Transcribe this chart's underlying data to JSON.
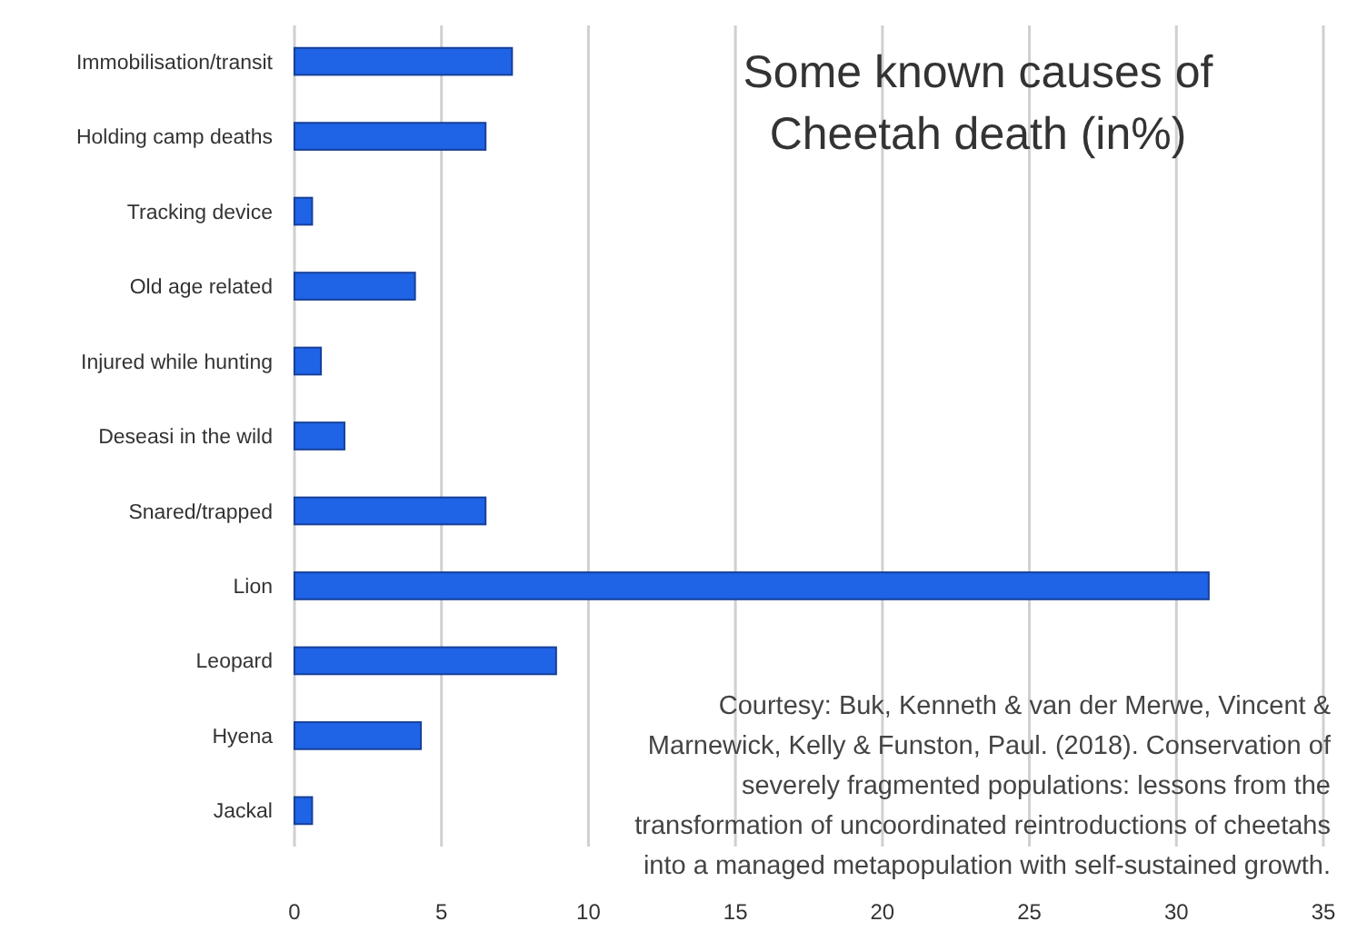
{
  "chart_data": {
    "type": "bar",
    "orientation": "horizontal",
    "title": "Some known causes of Cheetah death (in%)",
    "categories": [
      "Immobilisation/transit",
      "Holding camp deaths",
      "Tracking device",
      "Old age related",
      "Injured while hunting",
      "Deseasi in the wild",
      "Snared/trapped",
      "Lion",
      "Leopard",
      "Hyena",
      "Jackal"
    ],
    "values": [
      7.4,
      6.5,
      0.6,
      4.1,
      0.9,
      1.7,
      6.5,
      31.1,
      8.9,
      4.3,
      0.6
    ],
    "color": "#1f63e6",
    "xlim": [
      0,
      35
    ],
    "xticks": [
      0,
      5,
      10,
      15,
      20,
      25,
      30,
      35
    ],
    "grid": "x",
    "annotations": [
      "Courtesy: Buk, Kenneth & van der Merwe, Vincent & Marnewick, Kelly & Funston, Paul. (2018). Conservation of severely fragmented populations: lessons from the transformation of uncoordinated reintroductions of cheetahs into a managed metapopulation with self-sustained growth."
    ]
  }
}
